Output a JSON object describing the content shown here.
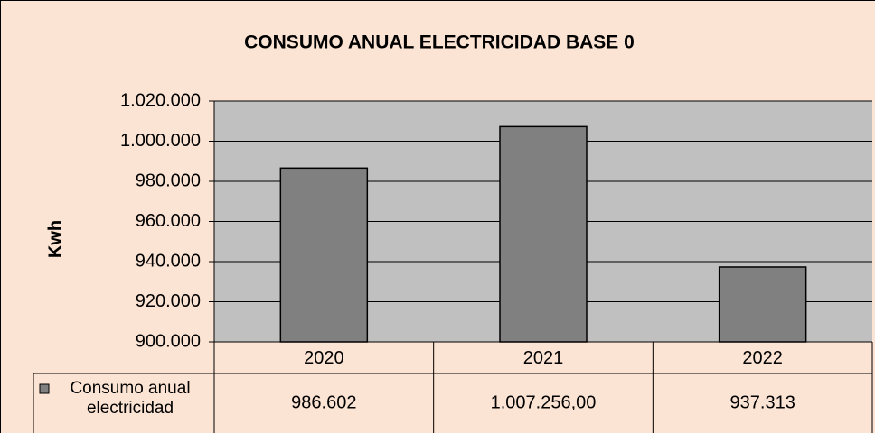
{
  "chart_data": {
    "type": "bar",
    "title": "CONSUMO ANUAL ELECTRICIDAD BASE 0",
    "y_label": "Kwh",
    "categories": [
      "2020",
      "2021",
      "2022"
    ],
    "series": [
      {
        "name": "Consumo anual electricidad",
        "color": "#808080",
        "values": [
          986602,
          1007256,
          937313
        ],
        "value_labels": [
          "986.602",
          "1.007.256,00",
          "937.313"
        ]
      }
    ],
    "ylim": [
      900000,
      1020000
    ],
    "yticks": [
      {
        "value": 900000,
        "label": "900.000"
      },
      {
        "value": 920000,
        "label": "920.000"
      },
      {
        "value": 940000,
        "label": "940.000"
      },
      {
        "value": 960000,
        "label": "960.000"
      },
      {
        "value": 980000,
        "label": "980.000"
      },
      {
        "value": 1000000,
        "label": "1.000.000"
      },
      {
        "value": 1020000,
        "label": "1.020.000"
      }
    ],
    "grid": true
  }
}
